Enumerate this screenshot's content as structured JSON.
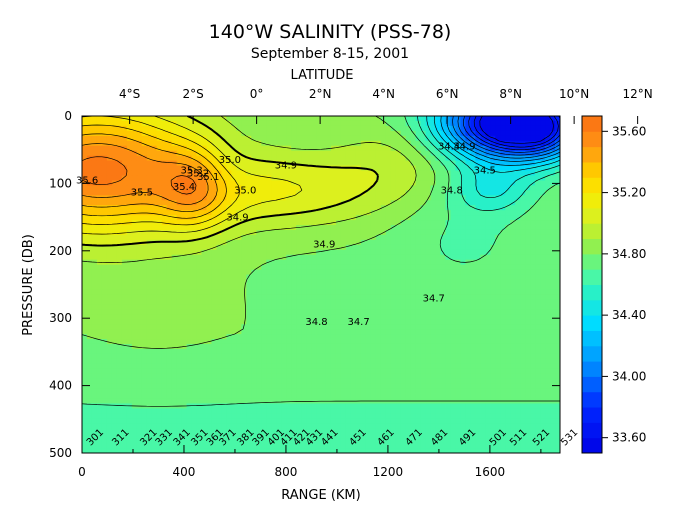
{
  "chart_data": {
    "type": "heatmap",
    "title": "140°W SALINITY (PSS-78)",
    "subtitle": "September 8-15, 2001",
    "top_axis_label": "LATITUDE",
    "top_ticks": [
      "4°S",
      "2°S",
      "0°",
      "2°N",
      "4°N",
      "6°N",
      "8°N",
      "10°N",
      "12°N"
    ],
    "top_tick_lat": [
      -4,
      -2,
      0,
      2,
      4,
      6,
      8,
      10,
      12
    ],
    "xlabel": "RANGE (KM)",
    "x_ticks": [
      "0",
      "400",
      "800",
      "1200",
      "1600"
    ],
    "x_tick_values": [
      0,
      400,
      800,
      1200,
      1600
    ],
    "xlim": [
      0,
      1875
    ],
    "ylabel": "PRESSURE (DB)",
    "y_ticks": [
      "0",
      "100",
      "200",
      "300",
      "400",
      "500"
    ],
    "y_tick_values": [
      0,
      100,
      200,
      300,
      400,
      500
    ],
    "ylim": [
      500,
      0
    ],
    "colorbar": {
      "labels": [
        "35.60",
        "35.20",
        "34.80",
        "34.40",
        "34.00",
        "33.60"
      ],
      "label_values": [
        35.6,
        35.2,
        34.8,
        34.4,
        34.0,
        33.6
      ],
      "range": [
        33.5,
        35.7
      ],
      "step": 0.1
    },
    "contour_labels": [
      {
        "text": "35.6",
        "x": 20,
        "y": 100
      },
      {
        "text": "35.5",
        "x": 235,
        "y": 118
      },
      {
        "text": "35.4",
        "x": 400,
        "y": 110
      },
      {
        "text": "35.3",
        "x": 430,
        "y": 85
      },
      {
        "text": "35.2",
        "x": 455,
        "y": 90
      },
      {
        "text": "35.1",
        "x": 495,
        "y": 95
      },
      {
        "text": "35.0",
        "x": 580,
        "y": 70
      },
      {
        "text": "35.0",
        "x": 640,
        "y": 115
      },
      {
        "text": "34.9",
        "x": 610,
        "y": 155
      },
      {
        "text": "34.9",
        "x": 800,
        "y": 78
      },
      {
        "text": "34.9",
        "x": 950,
        "y": 195
      },
      {
        "text": "34.8",
        "x": 920,
        "y": 310
      },
      {
        "text": "34.7",
        "x": 1085,
        "y": 310
      },
      {
        "text": "34.7",
        "x": 1380,
        "y": 275
      },
      {
        "text": "34.8",
        "x": 1450,
        "y": 115
      },
      {
        "text": "34.5",
        "x": 1580,
        "y": 85
      },
      {
        "text": "34.4",
        "x": 1440,
        "y": 50
      },
      {
        "text": "34.9",
        "x": 1500,
        "y": 50
      },
      {
        "text": "301",
        "x": 60,
        "y": 480
      },
      {
        "text": "311",
        "x": 160,
        "y": 480
      },
      {
        "text": "321",
        "x": 270,
        "y": 480
      },
      {
        "text": "331",
        "x": 330,
        "y": 480
      },
      {
        "text": "341",
        "x": 400,
        "y": 480
      },
      {
        "text": "351",
        "x": 470,
        "y": 480
      },
      {
        "text": "361",
        "x": 530,
        "y": 480
      },
      {
        "text": "371",
        "x": 580,
        "y": 480
      },
      {
        "text": "381",
        "x": 650,
        "y": 480
      },
      {
        "text": "391",
        "x": 710,
        "y": 480
      },
      {
        "text": "401",
        "x": 770,
        "y": 480
      },
      {
        "text": "411",
        "x": 820,
        "y": 480
      },
      {
        "text": "421",
        "x": 870,
        "y": 480
      },
      {
        "text": "431",
        "x": 920,
        "y": 480
      },
      {
        "text": "441",
        "x": 980,
        "y": 480
      },
      {
        "text": "451",
        "x": 1090,
        "y": 480
      },
      {
        "text": "461",
        "x": 1200,
        "y": 480
      },
      {
        "text": "471",
        "x": 1310,
        "y": 480
      },
      {
        "text": "481",
        "x": 1410,
        "y": 480
      },
      {
        "text": "491",
        "x": 1520,
        "y": 480
      },
      {
        "text": "501",
        "x": 1640,
        "y": 480
      },
      {
        "text": "511",
        "x": 1720,
        "y": 480
      },
      {
        "text": "521",
        "x": 1810,
        "y": 480
      },
      {
        "text": "531",
        "x": 1920,
        "y": 480
      }
    ]
  }
}
